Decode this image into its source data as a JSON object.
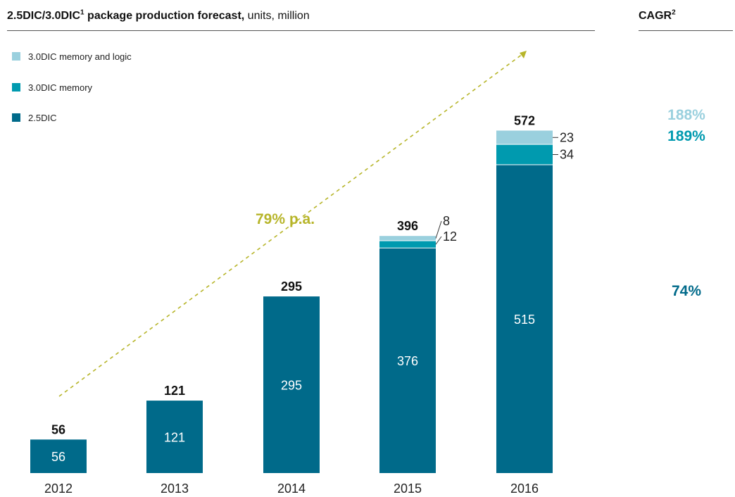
{
  "title": {
    "main": "2.5DIC/3.0DIC",
    "main_sup": "1",
    "main_rest": " package production forecast,",
    "units": " units, million"
  },
  "cagr_header": {
    "label": "CAGR",
    "sup": "2"
  },
  "colors": {
    "dic25": "#006a8a",
    "mem30": "#009aaf",
    "memlogic30": "#9ad0de",
    "trend": "#b7b52a",
    "cagr_dic25": "#006a8a",
    "cagr_mem30": "#009aaf",
    "cagr_memlogic30": "#9ad0de"
  },
  "chart_data": {
    "type": "bar",
    "stacked": true,
    "categories": [
      "2012",
      "2013",
      "2014",
      "2015",
      "2016"
    ],
    "series": [
      {
        "name": "2.5DIC",
        "values": [
          56,
          121,
          295,
          376,
          515
        ],
        "color": "#006a8a"
      },
      {
        "name": "3.0DIC memory",
        "values": [
          0,
          0,
          0,
          12,
          34
        ],
        "color": "#009aaf"
      },
      {
        "name": "3.0DIC memory and logic",
        "values": [
          0,
          0,
          0,
          8,
          23
        ],
        "color": "#9ad0de"
      }
    ],
    "totals": [
      56,
      121,
      295,
      396,
      572
    ],
    "legend": [
      "3.0DIC memory and logic",
      "3.0DIC memory",
      "2.5DIC"
    ],
    "legend_position": "top-left",
    "trend_label": "79% p.a.",
    "cagr": [
      {
        "series": "3.0DIC memory and logic",
        "value": "188%"
      },
      {
        "series": "3.0DIC memory",
        "value": "189%"
      },
      {
        "series": "2.5DIC",
        "value": "74%"
      }
    ],
    "ylim": [
      0,
      580
    ],
    "grid": false
  }
}
